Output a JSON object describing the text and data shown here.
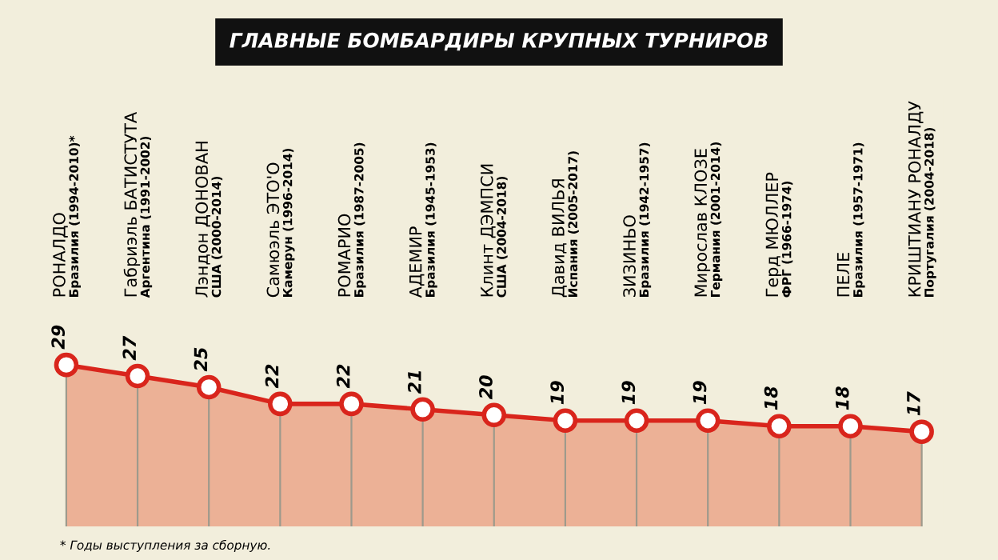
{
  "chart_data": {
    "type": "area",
    "title": "ГЛАВНЫЕ БОМБАРДИРЫ КРУПНЫХ ТУРНИРОВ",
    "categories": [
      "РОНАЛДО\nБразилия (1994-2010)*",
      "Габриэль БАТИСТУТА\nАргентина (1991-2002)",
      "Лэндон ДОНОВАН\nСША (2000-2014)",
      "Самюэль ЭТО'О\nКамерун (1996-2014)",
      "РОМАРИО\nБразилия (1987-2005)",
      "АДЕМИР\nБразилия (1945-1953)",
      "Клинт ДЭМПСИ\nСША (2004-2018)",
      "Давид ВИЛЬЯ\nИспания (2005-2017)",
      "ЗИЗИНЬО\nБразилия (1942-1957)",
      "Мирослав КЛОЗЕ\nГермания (2001-2014)",
      "Герд МЮЛЛЕР\nФРГ (1966-1974)",
      "ПЕЛЕ\nБразилия (1957-1971)",
      "КРИШТИАНУ РОНАЛДУ\nПортугалия (2004-2018)"
    ],
    "values": [
      29,
      27,
      25,
      22,
      22,
      21,
      20,
      19,
      19,
      19,
      18,
      18,
      17
    ],
    "color": "#d9251c",
    "marker": "circle",
    "grid": "x",
    "data_labels": true,
    "annotations": [
      "* Годы выступления за сборную."
    ]
  }
}
